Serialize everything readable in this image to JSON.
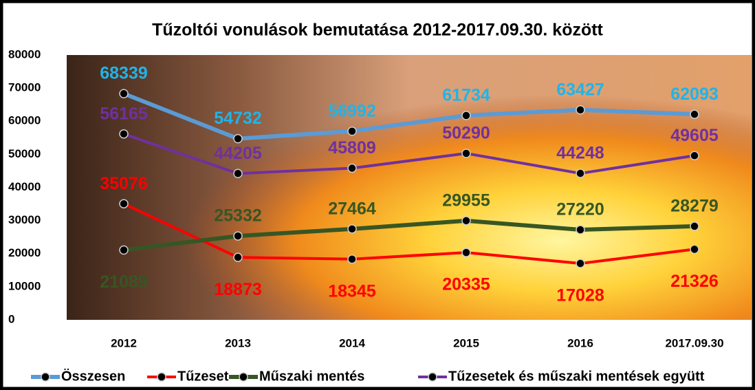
{
  "chart_data": {
    "type": "line",
    "title": "Tűzoltói vonulások bemutatása 2012-2017.09.30. között",
    "categories": [
      "2012",
      "2013",
      "2014",
      "2015",
      "2016",
      "2017.09.30"
    ],
    "series": [
      {
        "name": "Összesen",
        "color": "#5b9bd5",
        "label_color": "#1fb4ea",
        "values": [
          68339,
          54732,
          56992,
          61734,
          63427,
          62093
        ]
      },
      {
        "name": "Tűzeset",
        "color": "#ff0000",
        "label_color": "#ff0000",
        "values": [
          35076,
          18873,
          18345,
          20335,
          17028,
          21326
        ]
      },
      {
        "name": "Műszaki mentés",
        "color": "#375623",
        "label_color": "#375623",
        "values": [
          21089,
          25332,
          27464,
          29955,
          27220,
          28279
        ]
      },
      {
        "name": "Tűzesetek és műszaki mentések együtt",
        "color": "#7030a0",
        "label_color": "#7030a0",
        "values": [
          56165,
          44205,
          45809,
          50290,
          44248,
          49605
        ]
      }
    ],
    "ylim": [
      0,
      80000
    ],
    "yticks": [
      0,
      10000,
      20000,
      30000,
      40000,
      50000,
      60000,
      70000,
      80000
    ],
    "grid": false,
    "legend": "bottom"
  }
}
